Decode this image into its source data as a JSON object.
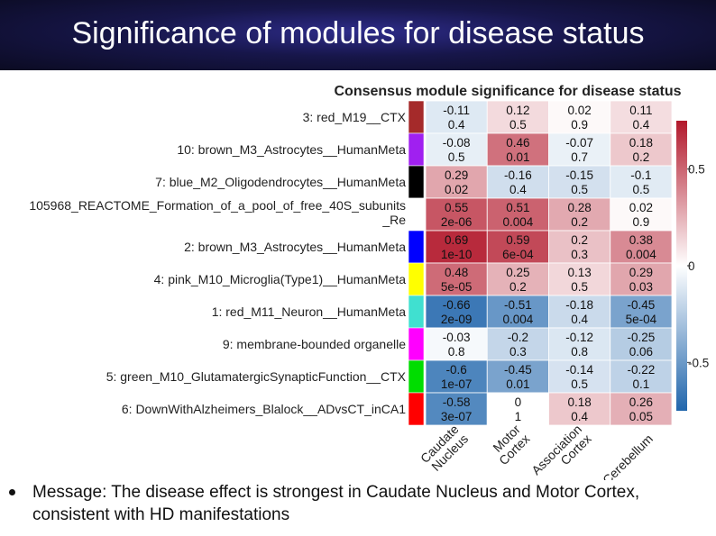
{
  "slide": {
    "title": "Significance of modules for disease status",
    "bullet": "Message: The disease effect is strongest in Caudate Nucleus and Motor Cortex, consistent with HD manifestations"
  },
  "chart_data": {
    "type": "heatmap",
    "title": "Consensus module significance for disease status",
    "rows": [
      "3: red_M19__CTX",
      "10: brown_M3_Astrocytes__HumanMeta",
      "7: blue_M2_Oligodendrocytes__HumanMeta",
      "105968_REACTOME_Formation_of_a_pool_of_free_40S_subunits_Re",
      "2: brown_M3_Astrocytes__HumanMeta",
      "4: pink_M10_Microglia(Type1)__HumanMeta",
      "1: red_M11_Neuron__HumanMeta",
      "9: membrane-bounded organelle",
      "5: green_M10_GlutamatergicSynapticFunction__CTX",
      "6: DownWithAlzheimers_Blalock__ADvsCT_inCA1"
    ],
    "row_label_lines": [
      [
        "3: red_M19__CTX"
      ],
      [
        "10: brown_M3_Astrocytes__HumanMeta"
      ],
      [
        "7: blue_M2_Oligodendrocytes__HumanMeta"
      ],
      [
        "105968_REACTOME_Formation_of_a_pool_of_free_40S_subunits",
        "_Re"
      ],
      [
        "2: brown_M3_Astrocytes__HumanMeta"
      ],
      [
        "4: pink_M10_Microglia(Type1)__HumanMeta"
      ],
      [
        "1: red_M11_Neuron__HumanMeta"
      ],
      [
        "9: membrane-bounded organelle"
      ],
      [
        "5: green_M10_GlutamatergicSynapticFunction__CTX"
      ],
      [
        "6: DownWithAlzheimers_Blalock__ADvsCT_inCA1"
      ]
    ],
    "module_colors": [
      "#a52a2a",
      "#a020f0",
      "#000000",
      "#ffffff",
      "#0000ff",
      "#ffff00",
      "#40e0d0",
      "#ff00ff",
      "#00dd00",
      "#ff0000"
    ],
    "columns": [
      "Caudate Nucleus",
      "Motor Cortex",
      "Association Cortex",
      "Cerebellum"
    ],
    "column_label_lines": [
      [
        "Caudate",
        "Nucleus"
      ],
      [
        "Motor",
        "Cortex"
      ],
      [
        "Association",
        "Cortex"
      ],
      [
        "Cerebellum"
      ]
    ],
    "values": [
      [
        -0.11,
        0.12,
        0.02,
        0.11
      ],
      [
        -0.08,
        0.46,
        -0.07,
        0.18
      ],
      [
        0.29,
        -0.16,
        -0.15,
        -0.1
      ],
      [
        0.55,
        0.51,
        0.28,
        0.02
      ],
      [
        0.69,
        0.59,
        0.2,
        0.38
      ],
      [
        0.48,
        0.25,
        0.13,
        0.29
      ],
      [
        -0.66,
        -0.51,
        -0.18,
        -0.45
      ],
      [
        -0.03,
        -0.2,
        -0.12,
        -0.25
      ],
      [
        -0.6,
        -0.45,
        -0.14,
        -0.22
      ],
      [
        -0.58,
        0,
        0.18,
        0.26
      ]
    ],
    "value_labels": [
      [
        "-0.11",
        "0.12",
        "0.02",
        "0.11"
      ],
      [
        "-0.08",
        "0.46",
        "-0.07",
        "0.18"
      ],
      [
        "0.29",
        "-0.16",
        "-0.15",
        "-0.1"
      ],
      [
        "0.55",
        "0.51",
        "0.28",
        "0.02"
      ],
      [
        "0.69",
        "0.59",
        "0.2",
        "0.38"
      ],
      [
        "0.48",
        "0.25",
        "0.13",
        "0.29"
      ],
      [
        "-0.66",
        "-0.51",
        "-0.18",
        "-0.45"
      ],
      [
        "-0.03",
        "-0.2",
        "-0.12",
        "-0.25"
      ],
      [
        "-0.6",
        "-0.45",
        "-0.14",
        "-0.22"
      ],
      [
        "-0.58",
        "0",
        "0.18",
        "0.26"
      ]
    ],
    "p_values": [
      [
        "0.4",
        "0.5",
        "0.9",
        "0.4"
      ],
      [
        "0.5",
        "0.01",
        "0.7",
        "0.2"
      ],
      [
        "0.02",
        "0.4",
        "0.5",
        "0.5"
      ],
      [
        "2e-06",
        "0.004",
        "0.2",
        "0.9"
      ],
      [
        "1e-10",
        "6e-04",
        "0.3",
        "0.004"
      ],
      [
        "5e-05",
        "0.2",
        "0.5",
        "0.03"
      ],
      [
        "2e-09",
        "0.004",
        "0.4",
        "5e-04"
      ],
      [
        "0.8",
        "0.3",
        "0.8",
        "0.06"
      ],
      [
        "1e-07",
        "0.01",
        "0.5",
        "0.1"
      ],
      [
        "3e-07",
        "1",
        "0.4",
        "0.05"
      ]
    ],
    "colorbar": {
      "range": [
        -0.75,
        0.75
      ],
      "ticks": [
        0.5,
        0,
        -0.5
      ],
      "tick_labels": [
        "0.5",
        "0",
        "-0.5"
      ],
      "low_color": "#2166ac",
      "mid_color": "#ffffff",
      "high_color": "#b2182b"
    }
  }
}
